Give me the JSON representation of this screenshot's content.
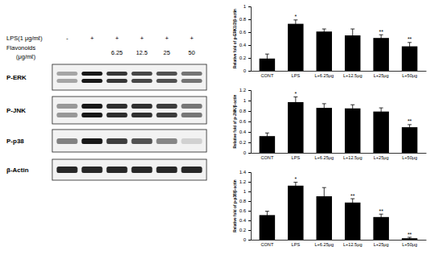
{
  "blot": {
    "lps_label": "LPS(1 μg/mℓ)",
    "flavonoid_label": "Flavonoids",
    "flavonoid_unit": "(μg/mℓ)",
    "lps": [
      "-",
      "+",
      "+",
      "+",
      "+",
      "+"
    ],
    "flavonoids": [
      null,
      null,
      "6.25",
      "12.5",
      "25",
      "50"
    ],
    "rows": [
      "P-ERK",
      "P-JNK",
      "P-p38",
      "β-Actin"
    ]
  },
  "chart_data": [
    {
      "type": "bar",
      "y_label": "Relative fold of p-ERK1/2/β-actin",
      "categories": [
        "CONT",
        "LPS",
        "L+6.25μg",
        "L+12.5μg",
        "L+25μg",
        "L+50μg"
      ],
      "values": [
        0.19,
        0.73,
        0.61,
        0.55,
        0.51,
        0.38
      ],
      "errors": [
        0.07,
        0.06,
        0.04,
        0.1,
        0.05,
        0.06
      ],
      "annotations": [
        null,
        "*",
        null,
        null,
        "**",
        "**"
      ],
      "color": "#000000",
      "ylim": [
        0,
        1
      ],
      "yticks": [
        0,
        0.2,
        0.4,
        0.6,
        0.8,
        1
      ]
    },
    {
      "type": "bar",
      "y_label": "Relative fold of p-JNK/β-actin",
      "categories": [
        "CONT",
        "LPS",
        "L+6.25μg",
        "L+12.5μg",
        "L+25μg",
        "L+50μg"
      ],
      "values": [
        0.32,
        0.97,
        0.86,
        0.85,
        0.79,
        0.49
      ],
      "errors": [
        0.06,
        0.1,
        0.08,
        0.07,
        0.07,
        0.05
      ],
      "annotations": [
        null,
        "*",
        null,
        null,
        null,
        "**"
      ],
      "color": "#000000",
      "ylim": [
        0,
        1.2
      ],
      "yticks": [
        0,
        0.2,
        0.4,
        0.6,
        0.8,
        1,
        1.2
      ]
    },
    {
      "type": "bar",
      "y_label": "Relative fold of p-p38/β-actin",
      "categories": [
        "CONT",
        "LPS",
        "L+6.25μg",
        "L+12.5μg",
        "L+25μg",
        "L+50μg"
      ],
      "values": [
        0.51,
        1.12,
        0.9,
        0.77,
        0.47,
        0.03
      ],
      "errors": [
        0.08,
        0.07,
        0.18,
        0.08,
        0.06,
        0.02
      ],
      "annotations": [
        null,
        "*",
        null,
        "**",
        "**",
        "**"
      ],
      "color": "#000000",
      "ylim": [
        0,
        1.4
      ],
      "yticks": [
        0,
        0.2,
        0.4,
        0.6,
        0.8,
        1,
        1.2,
        1.4
      ]
    }
  ]
}
